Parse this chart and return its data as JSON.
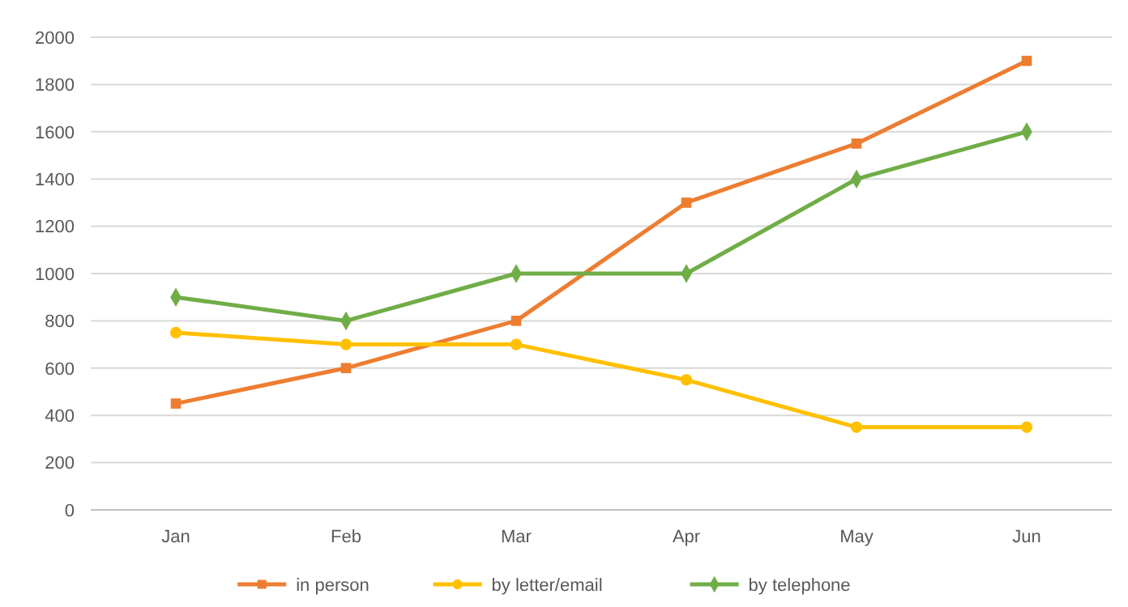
{
  "chart_data": {
    "type": "line",
    "categories": [
      "Jan",
      "Feb",
      "Mar",
      "Apr",
      "May",
      "Jun"
    ],
    "series": [
      {
        "name": "in person",
        "color": "#ed7d31",
        "marker": "square",
        "values": [
          450,
          600,
          800,
          1300,
          1550,
          1900
        ]
      },
      {
        "name": "by letter/email",
        "color": "#ffc000",
        "marker": "circle",
        "values": [
          750,
          700,
          700,
          550,
          350,
          350
        ]
      },
      {
        "name": "by telephone",
        "color": "#70ad47",
        "marker": "diamond",
        "values": [
          900,
          800,
          1000,
          1000,
          1400,
          1600
        ]
      }
    ],
    "ylim": [
      0,
      2000
    ],
    "yticks": [
      0,
      200,
      400,
      600,
      800,
      1000,
      1200,
      1400,
      1600,
      1800,
      2000
    ],
    "grid": "y",
    "legend": "bottom"
  }
}
